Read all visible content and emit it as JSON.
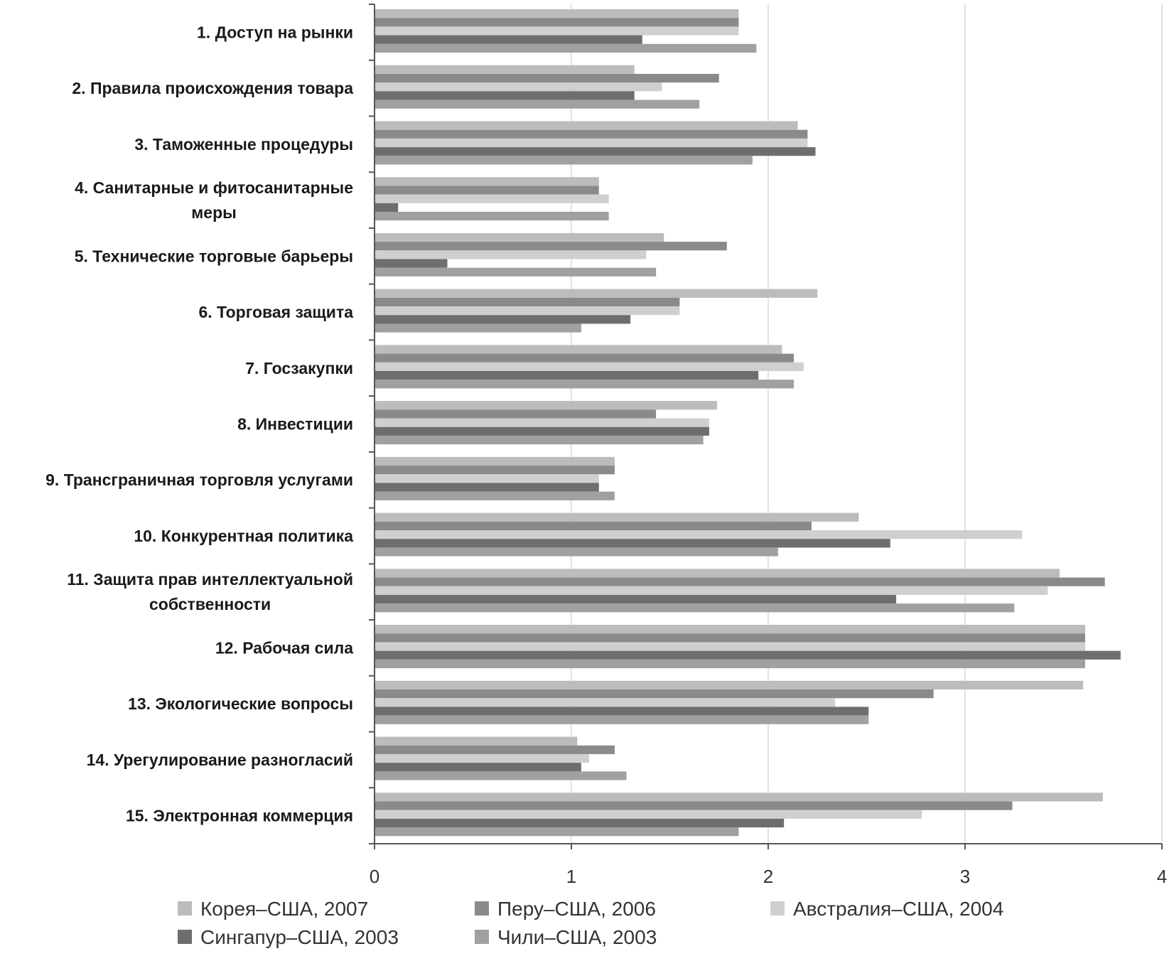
{
  "chart_data": {
    "type": "bar",
    "orientation": "horizontal",
    "categories": [
      "1. Доступ на рынки",
      "2. Правила происхождения товара",
      "3. Таможенные процедуры",
      "4. Санитарные и фитосанитарные меры",
      "5. Технические торговые барьеры",
      "6. Торговая защита",
      "7. Госзакупки",
      "8. Инвестиции",
      "9. Трансграничная торговля услугами",
      "10. Конкурентная политика",
      "11. Защита прав интеллектуальной собственности",
      "12. Рабочая сила",
      "13. Экологические вопросы",
      "14. Урегулирование разногласий",
      "15. Электронная коммерция"
    ],
    "category_lines": [
      [
        "1. Доступ на рынки"
      ],
      [
        "2. Правила происхождения товара"
      ],
      [
        "3. Таможенные процедуры"
      ],
      [
        "4. Санитарные и фитосанитарные",
        "меры"
      ],
      [
        "5. Технические торговые барьеры"
      ],
      [
        "6. Торговая защита"
      ],
      [
        "7. Госзакупки"
      ],
      [
        "8. Инвестиции"
      ],
      [
        "9. Трансграничная торговля услугами"
      ],
      [
        "10. Конкурентная политика"
      ],
      [
        "11. Защита прав интеллектуальной",
        "собственности"
      ],
      [
        "12. Рабочая сила"
      ],
      [
        "13. Экологические вопросы"
      ],
      [
        "14. Урегулирование разногласий"
      ],
      [
        "15. Электронная коммерция"
      ]
    ],
    "series": [
      {
        "name": "Корея–США, 2007",
        "color": "#bcbcbc",
        "values": [
          1.85,
          1.32,
          2.15,
          1.14,
          1.47,
          2.25,
          2.07,
          1.74,
          1.22,
          2.46,
          3.48,
          3.61,
          3.6,
          1.03,
          3.7
        ]
      },
      {
        "name": "Перу–США, 2006",
        "color": "#8a8a8a",
        "values": [
          1.85,
          1.75,
          2.2,
          1.14,
          1.79,
          1.55,
          2.13,
          1.43,
          1.22,
          2.22,
          3.71,
          3.61,
          2.84,
          1.22,
          3.24
        ]
      },
      {
        "name": "Австралия–США, 2004",
        "color": "#cfcfcf",
        "values": [
          1.85,
          1.46,
          2.2,
          1.19,
          1.38,
          1.55,
          2.18,
          1.7,
          1.14,
          3.29,
          3.42,
          3.61,
          2.34,
          1.09,
          2.78
        ]
      },
      {
        "name": "Сингапур–США, 2003",
        "color": "#6e6e6e",
        "values": [
          1.36,
          1.32,
          2.24,
          0.12,
          0.37,
          1.3,
          1.95,
          1.7,
          1.14,
          2.62,
          2.65,
          3.79,
          2.51,
          1.05,
          2.08
        ]
      },
      {
        "name": "Чили–США, 2003",
        "color": "#a0a0a0",
        "values": [
          1.94,
          1.65,
          1.92,
          1.19,
          1.43,
          1.05,
          2.13,
          1.67,
          1.22,
          2.05,
          3.25,
          3.61,
          2.51,
          1.28,
          1.85
        ]
      }
    ],
    "x_ticks": [
      "0",
      "1",
      "2",
      "3",
      "4"
    ],
    "xlim": [
      0,
      4
    ],
    "grid": true,
    "legend_position": "bottom",
    "title": "",
    "xlabel": "",
    "ylabel": ""
  }
}
